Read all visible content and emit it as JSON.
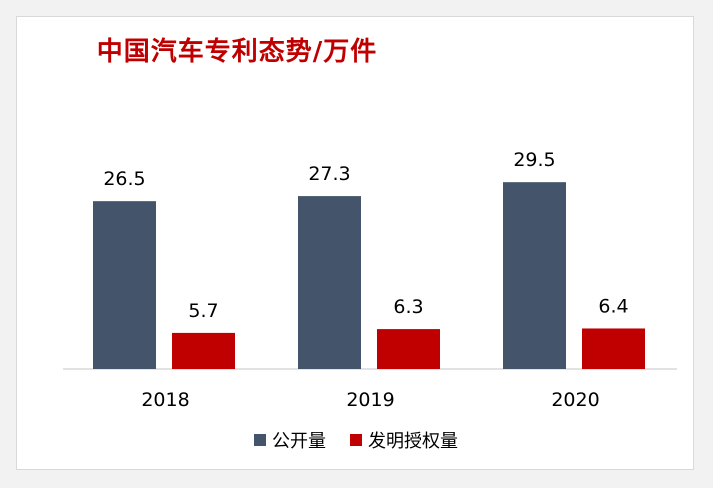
{
  "chart_data": {
    "type": "bar",
    "title": "中国汽车专利态势/万件",
    "categories": [
      "2018",
      "2019",
      "2020"
    ],
    "series": [
      {
        "name": "公开量",
        "values": [
          26.5,
          27.3,
          29.5
        ],
        "color": "#44546a"
      },
      {
        "name": "发明授权量",
        "values": [
          5.7,
          6.3,
          6.4
        ],
        "color": "#c00000"
      }
    ],
    "xlabel": "",
    "ylabel": "",
    "ylim": [
      0,
      36
    ],
    "grid": false,
    "legend_position": "bottom",
    "axis_color": "#d9d9d9"
  }
}
